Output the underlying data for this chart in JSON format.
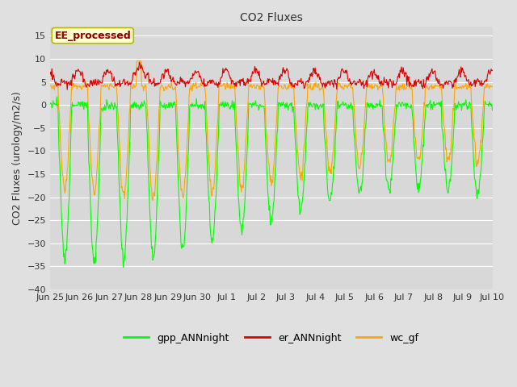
{
  "title": "CO2 Fluxes",
  "ylabel": "CO2 Fluxes (urology/m2/s)",
  "ylim": [
    -40,
    17
  ],
  "yticks": [
    -40,
    -35,
    -30,
    -25,
    -20,
    -15,
    -10,
    -5,
    0,
    5,
    10,
    15
  ],
  "fig_bg_color": "#e0e0e0",
  "plot_bg_color": "#d8d8d8",
  "annotation_text": "EE_processed",
  "annotation_color": "#8b0000",
  "annotation_box_facecolor": "#ffffcc",
  "annotation_box_edgecolor": "#b8b800",
  "gpp_color": "#00ff00",
  "er_color": "#dd0000",
  "wc_color": "#ffa500",
  "n_days": 15,
  "ppd": 48,
  "x_tick_labels": [
    "Jun 25",
    "Jun 26",
    "Jun 27",
    "Jun 28",
    "Jun 29",
    "Jun 30",
    "Jul 1",
    "Jul 2",
    "Jul 3",
    "Jul 4",
    "Jul 5",
    "Jul 6",
    "Jul 7",
    "Jul 8",
    "Jul 9",
    "Jul 10"
  ],
  "legend_labels": [
    "gpp_ANNnight",
    "er_ANNnight",
    "wc_gf"
  ],
  "legend_colors": [
    "#00ff00",
    "#dd0000",
    "#ffa500"
  ],
  "title_fontsize": 10,
  "ylabel_fontsize": 9,
  "tick_fontsize": 8,
  "legend_fontsize": 9,
  "annotation_fontsize": 9,
  "lw": 0.8
}
